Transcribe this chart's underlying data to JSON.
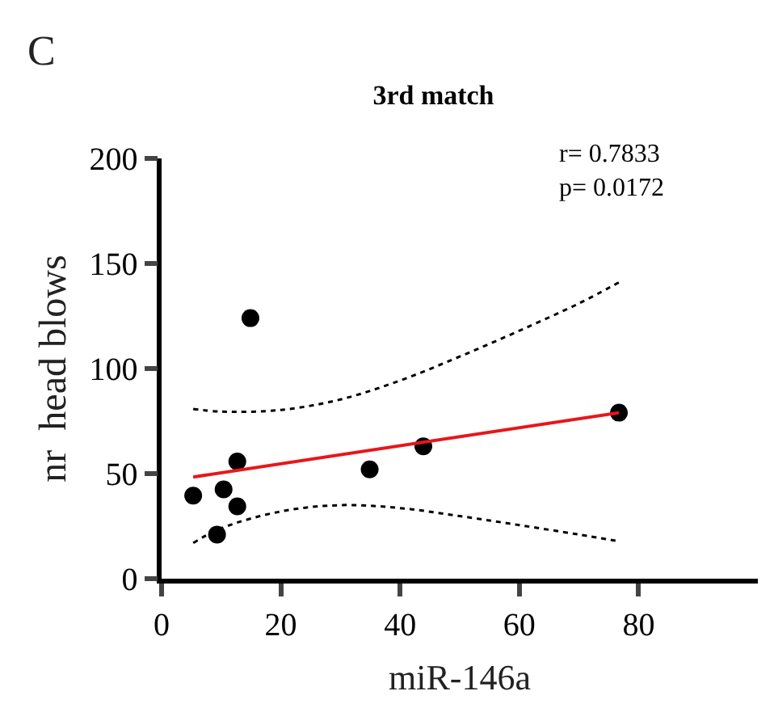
{
  "chart_data": {
    "type": "scatter",
    "title": "3rd match",
    "xlabel": "miR-146a",
    "ylabel": "nr  head blows",
    "annotations": [
      "C",
      "r= 0.7833\np= 0.0172"
    ],
    "xlim": [
      0,
      100
    ],
    "xticks": [
      0,
      20,
      40,
      60,
      80
    ],
    "ylim": [
      0,
      200
    ],
    "yticks": [
      0,
      50,
      100,
      150,
      200
    ],
    "legend": false,
    "series": [
      {
        "color": "#000000",
        "marker": "circle",
        "x": [
          5.3,
          9.3,
          10.4,
          12.7,
          12.7,
          14.9,
          34.9,
          43.9,
          76.7
        ],
        "values": [
          39.5,
          21,
          42.5,
          55.8,
          34.4,
          124,
          52,
          63,
          79
        ]
      },
      {
        "type": "line",
        "color": "#e8161b",
        "line_style": "solid",
        "x": [
          5.3,
          76.7
        ],
        "values": [
          48.4,
          79
        ]
      },
      {
        "type": "line",
        "color": "#000000",
        "line_style": "dotted",
        "x": [
          5.3,
          10,
          20,
          30,
          40,
          50,
          60,
          70,
          76.7
        ],
        "values": [
          80.8,
          79.5,
          80.3,
          85.3,
          94.3,
          105.7,
          118,
          131,
          141
        ]
      },
      {
        "type": "line",
        "color": "#000000",
        "line_style": "dotted",
        "x": [
          5.3,
          10,
          20,
          30,
          40,
          50,
          60,
          70,
          76.7
        ],
        "values": [
          17,
          24,
          32,
          35,
          33.6,
          29.8,
          25.5,
          21,
          17.8
        ]
      }
    ]
  }
}
